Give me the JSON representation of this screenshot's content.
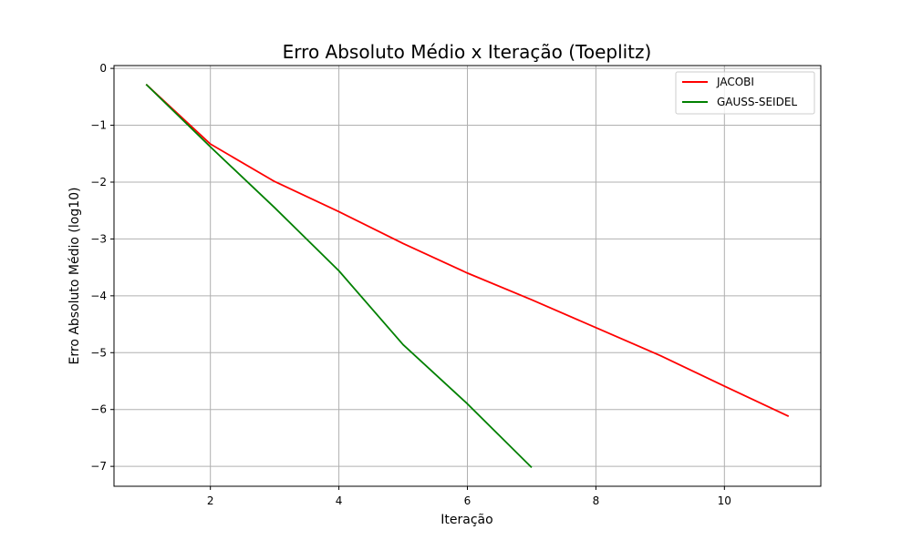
{
  "chart_data": {
    "type": "line",
    "title": "Erro Absoluto Médio x Iteração (Toeplitz)",
    "xlabel": "Iteração",
    "ylabel": "Erro Absoluto Médio (log10)",
    "xlim": [
      0.5,
      11.5
    ],
    "ylim": [
      -7.35,
      0.05
    ],
    "xticks": [
      2,
      4,
      6,
      8,
      10
    ],
    "yticks": [
      0,
      -1,
      -2,
      -3,
      -4,
      -5,
      -6,
      -7
    ],
    "xtick_labels": [
      "2",
      "4",
      "6",
      "8",
      "10"
    ],
    "ytick_labels": [
      "0",
      "−1",
      "−2",
      "−3",
      "−4",
      "−5",
      "−6",
      "−7"
    ],
    "grid": true,
    "legend_position": "top-right",
    "series": [
      {
        "name": "JACOBI",
        "color": "#ff0000",
        "x": [
          1,
          2,
          3,
          4,
          5,
          6,
          7,
          8,
          9,
          10,
          11
        ],
        "y": [
          -0.28,
          -1.33,
          -1.99,
          -2.52,
          -3.08,
          -3.6,
          -4.07,
          -4.56,
          -5.05,
          -5.59,
          -6.12
        ]
      },
      {
        "name": "GAUSS-SEIDEL",
        "color": "#008000",
        "x": [
          1,
          2,
          3,
          4,
          5,
          6,
          7
        ],
        "y": [
          -0.28,
          -1.38,
          -2.45,
          -3.56,
          -4.86,
          -5.9,
          -7.02
        ]
      }
    ]
  }
}
